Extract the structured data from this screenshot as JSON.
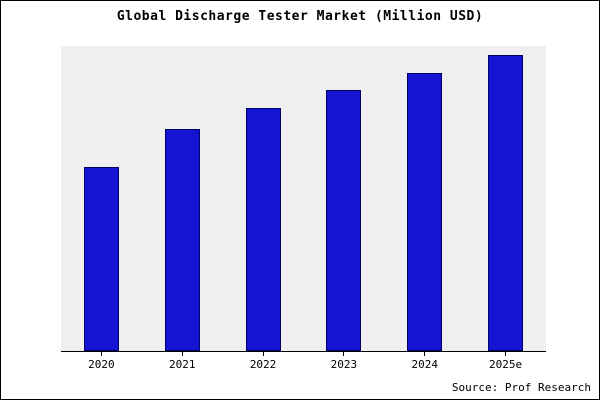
{
  "source": "Source: Prof Research",
  "chart_data": {
    "type": "bar",
    "title": "Global Discharge Tester Market (Million USD)",
    "categories": [
      "2020",
      "2021",
      "2022",
      "2023",
      "2024",
      "2025e"
    ],
    "values": [
      62,
      75,
      82,
      88,
      94,
      100
    ],
    "xlabel": "",
    "ylabel": "",
    "ylim": [
      0,
      103
    ],
    "grid": false,
    "legend": false,
    "bar_color": "#1414d2",
    "bar_border_color": "#000066",
    "plot_background": "#efefef",
    "outer_background": "#ffffff"
  }
}
